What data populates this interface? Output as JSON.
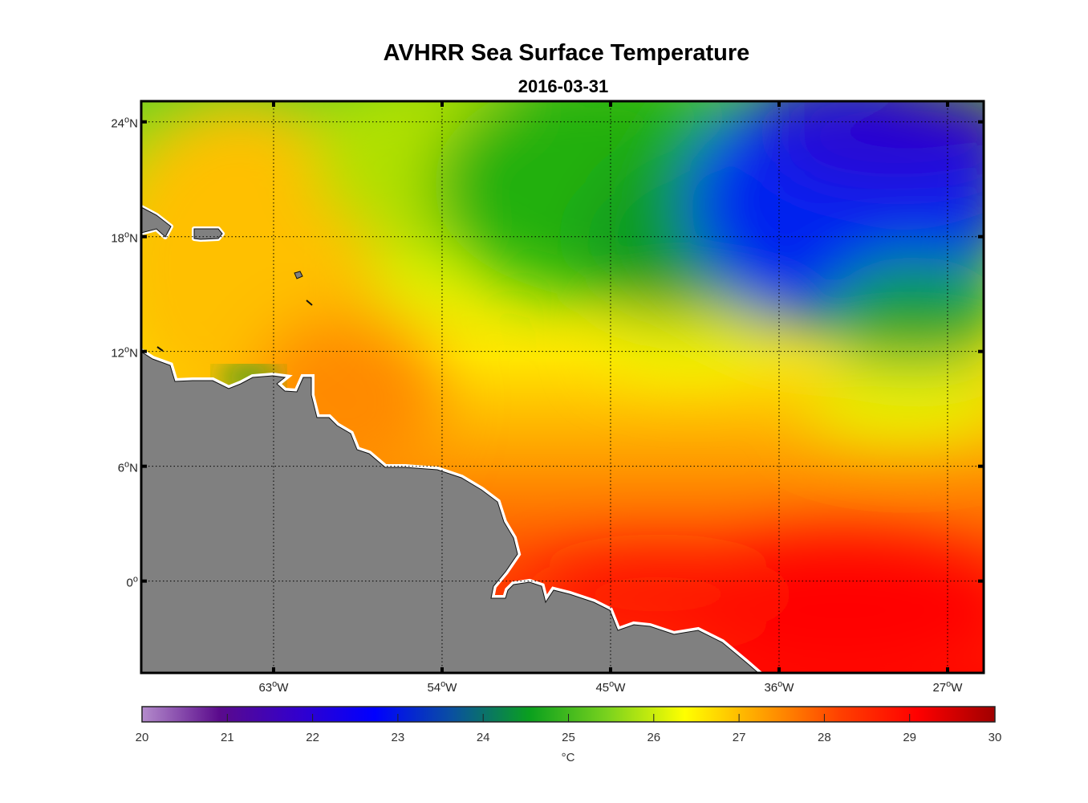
{
  "chart_data": {
    "type": "heatmap",
    "title": "AVHRR Sea Surface Temperature",
    "subtitle": "2016-03-31",
    "xlim_deg_east": [
      -70.07,
      -25.07
    ],
    "ylim_deg_north": [
      -4.8,
      25.08
    ],
    "x_ticks": [
      {
        "value": -63,
        "label": "63",
        "suffix": "W"
      },
      {
        "value": -54,
        "label": "54",
        "suffix": "W"
      },
      {
        "value": -45,
        "label": "45",
        "suffix": "W"
      },
      {
        "value": -36,
        "label": "36",
        "suffix": "W"
      },
      {
        "value": -27,
        "label": "27",
        "suffix": "W"
      }
    ],
    "y_ticks": [
      {
        "value": 24,
        "label": "24",
        "suffix": "N"
      },
      {
        "value": 18,
        "label": "18",
        "suffix": "N"
      },
      {
        "value": 12,
        "label": "12",
        "suffix": "N"
      },
      {
        "value": 6,
        "label": "6",
        "suffix": "N"
      },
      {
        "value": 0,
        "label": "0",
        "suffix": ""
      }
    ],
    "grid": "dotted",
    "land_color": "#808080",
    "colorbar": {
      "location": "bottom",
      "range": [
        20,
        30
      ],
      "ticks": [
        "20",
        "21",
        "22",
        "23",
        "24",
        "25",
        "26",
        "27",
        "28",
        "29",
        "30"
      ],
      "unit": "°C",
      "colors": [
        "#b48ccc",
        "#5a0a8c",
        "#3300cc",
        "#0000ff",
        "#0a50a0",
        "#0aa01e",
        "#7ad21e",
        "#ffff00",
        "#ffa000",
        "#ff4000",
        "#ff0000",
        "#a00000"
      ]
    },
    "field_summary": {
      "northeast": "21.5-23 (blue)",
      "north_central": "24-25 (green)",
      "northwest": "26-27 (yellow/orange)",
      "equatorial_east": "28.5-29.5 (red)"
    }
  }
}
